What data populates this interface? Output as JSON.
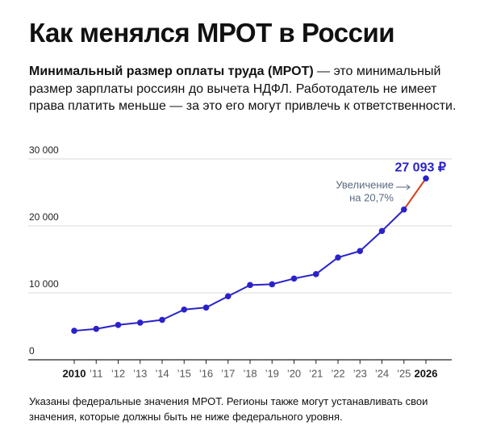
{
  "chart_data": {
    "type": "line",
    "title": "Как менялся МРОТ в России",
    "subtitle_bold": "Минимальный размер оплаты труда (МРОТ)",
    "subtitle": " — это минимальный размер зарплаты россиян до вычета НДФЛ. Работодатель не имеет права платить меньше — за это его могут привлечь к ответственности.",
    "footnote": "Указаны федеральные значения МРОТ. Регионы также могут устанавливать свои значения, которые должны быть не ниже федерального уровня.",
    "annotation": [
      "Увеличение",
      "на 20,7%"
    ],
    "categories": [
      "2010",
      "’11",
      "’12",
      "’13",
      "’14",
      "’15",
      "’16",
      "’17",
      "’18",
      "’19",
      "’20",
      "’21",
      "’22",
      "’23",
      "’24",
      "’25",
      "2026"
    ],
    "series": [
      {
        "name": "МРОТ",
        "color": "#2a22c8",
        "highlight_color": "#d2401c",
        "values": [
          4330,
          4611,
          5205,
          5554,
          5965,
          7500,
          7800,
          9489,
          11163,
          11280,
          12130,
          12792,
          15279,
          16242,
          19242,
          22440,
          27093
        ],
        "value_labels": {
          "16": "27 093 ₽"
        }
      }
    ],
    "ylim": [
      0,
      30000
    ],
    "yticks": [
      {
        "value": 0,
        "label": "0"
      },
      {
        "value": 10000,
        "label": "10 000"
      },
      {
        "value": 20000,
        "label": "20 000"
      },
      {
        "value": 30000,
        "label": "30 000"
      }
    ],
    "grid": true
  }
}
